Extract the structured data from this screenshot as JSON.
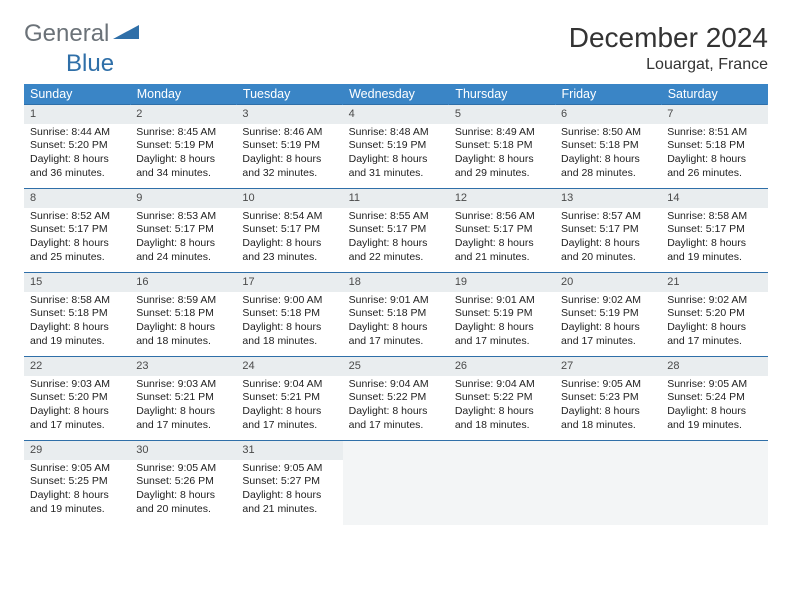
{
  "logo": {
    "text_general": "General",
    "text_blue": "Blue"
  },
  "header": {
    "title": "December 2024",
    "location": "Louargat, France"
  },
  "colors": {
    "header_bg": "#3a85c6",
    "header_text": "#ffffff",
    "row_border": "#2f6fa8",
    "daynum_bg": "#e9edef",
    "logo_gray": "#6b7278",
    "logo_blue": "#2f6fa8"
  },
  "typography": {
    "title_fontsize": 28,
    "location_fontsize": 16,
    "dayheader_fontsize": 12.5,
    "cell_fontsize": 10.5
  },
  "calendar": {
    "day_headers": [
      "Sunday",
      "Monday",
      "Tuesday",
      "Wednesday",
      "Thursday",
      "Friday",
      "Saturday"
    ],
    "weeks": [
      [
        {
          "num": "1",
          "sunrise": "Sunrise: 8:44 AM",
          "sunset": "Sunset: 5:20 PM",
          "day1": "Daylight: 8 hours",
          "day2": "and 36 minutes."
        },
        {
          "num": "2",
          "sunrise": "Sunrise: 8:45 AM",
          "sunset": "Sunset: 5:19 PM",
          "day1": "Daylight: 8 hours",
          "day2": "and 34 minutes."
        },
        {
          "num": "3",
          "sunrise": "Sunrise: 8:46 AM",
          "sunset": "Sunset: 5:19 PM",
          "day1": "Daylight: 8 hours",
          "day2": "and 32 minutes."
        },
        {
          "num": "4",
          "sunrise": "Sunrise: 8:48 AM",
          "sunset": "Sunset: 5:19 PM",
          "day1": "Daylight: 8 hours",
          "day2": "and 31 minutes."
        },
        {
          "num": "5",
          "sunrise": "Sunrise: 8:49 AM",
          "sunset": "Sunset: 5:18 PM",
          "day1": "Daylight: 8 hours",
          "day2": "and 29 minutes."
        },
        {
          "num": "6",
          "sunrise": "Sunrise: 8:50 AM",
          "sunset": "Sunset: 5:18 PM",
          "day1": "Daylight: 8 hours",
          "day2": "and 28 minutes."
        },
        {
          "num": "7",
          "sunrise": "Sunrise: 8:51 AM",
          "sunset": "Sunset: 5:18 PM",
          "day1": "Daylight: 8 hours",
          "day2": "and 26 minutes."
        }
      ],
      [
        {
          "num": "8",
          "sunrise": "Sunrise: 8:52 AM",
          "sunset": "Sunset: 5:17 PM",
          "day1": "Daylight: 8 hours",
          "day2": "and 25 minutes."
        },
        {
          "num": "9",
          "sunrise": "Sunrise: 8:53 AM",
          "sunset": "Sunset: 5:17 PM",
          "day1": "Daylight: 8 hours",
          "day2": "and 24 minutes."
        },
        {
          "num": "10",
          "sunrise": "Sunrise: 8:54 AM",
          "sunset": "Sunset: 5:17 PM",
          "day1": "Daylight: 8 hours",
          "day2": "and 23 minutes."
        },
        {
          "num": "11",
          "sunrise": "Sunrise: 8:55 AM",
          "sunset": "Sunset: 5:17 PM",
          "day1": "Daylight: 8 hours",
          "day2": "and 22 minutes."
        },
        {
          "num": "12",
          "sunrise": "Sunrise: 8:56 AM",
          "sunset": "Sunset: 5:17 PM",
          "day1": "Daylight: 8 hours",
          "day2": "and 21 minutes."
        },
        {
          "num": "13",
          "sunrise": "Sunrise: 8:57 AM",
          "sunset": "Sunset: 5:17 PM",
          "day1": "Daylight: 8 hours",
          "day2": "and 20 minutes."
        },
        {
          "num": "14",
          "sunrise": "Sunrise: 8:58 AM",
          "sunset": "Sunset: 5:17 PM",
          "day1": "Daylight: 8 hours",
          "day2": "and 19 minutes."
        }
      ],
      [
        {
          "num": "15",
          "sunrise": "Sunrise: 8:58 AM",
          "sunset": "Sunset: 5:18 PM",
          "day1": "Daylight: 8 hours",
          "day2": "and 19 minutes."
        },
        {
          "num": "16",
          "sunrise": "Sunrise: 8:59 AM",
          "sunset": "Sunset: 5:18 PM",
          "day1": "Daylight: 8 hours",
          "day2": "and 18 minutes."
        },
        {
          "num": "17",
          "sunrise": "Sunrise: 9:00 AM",
          "sunset": "Sunset: 5:18 PM",
          "day1": "Daylight: 8 hours",
          "day2": "and 18 minutes."
        },
        {
          "num": "18",
          "sunrise": "Sunrise: 9:01 AM",
          "sunset": "Sunset: 5:18 PM",
          "day1": "Daylight: 8 hours",
          "day2": "and 17 minutes."
        },
        {
          "num": "19",
          "sunrise": "Sunrise: 9:01 AM",
          "sunset": "Sunset: 5:19 PM",
          "day1": "Daylight: 8 hours",
          "day2": "and 17 minutes."
        },
        {
          "num": "20",
          "sunrise": "Sunrise: 9:02 AM",
          "sunset": "Sunset: 5:19 PM",
          "day1": "Daylight: 8 hours",
          "day2": "and 17 minutes."
        },
        {
          "num": "21",
          "sunrise": "Sunrise: 9:02 AM",
          "sunset": "Sunset: 5:20 PM",
          "day1": "Daylight: 8 hours",
          "day2": "and 17 minutes."
        }
      ],
      [
        {
          "num": "22",
          "sunrise": "Sunrise: 9:03 AM",
          "sunset": "Sunset: 5:20 PM",
          "day1": "Daylight: 8 hours",
          "day2": "and 17 minutes."
        },
        {
          "num": "23",
          "sunrise": "Sunrise: 9:03 AM",
          "sunset": "Sunset: 5:21 PM",
          "day1": "Daylight: 8 hours",
          "day2": "and 17 minutes."
        },
        {
          "num": "24",
          "sunrise": "Sunrise: 9:04 AM",
          "sunset": "Sunset: 5:21 PM",
          "day1": "Daylight: 8 hours",
          "day2": "and 17 minutes."
        },
        {
          "num": "25",
          "sunrise": "Sunrise: 9:04 AM",
          "sunset": "Sunset: 5:22 PM",
          "day1": "Daylight: 8 hours",
          "day2": "and 17 minutes."
        },
        {
          "num": "26",
          "sunrise": "Sunrise: 9:04 AM",
          "sunset": "Sunset: 5:22 PM",
          "day1": "Daylight: 8 hours",
          "day2": "and 18 minutes."
        },
        {
          "num": "27",
          "sunrise": "Sunrise: 9:05 AM",
          "sunset": "Sunset: 5:23 PM",
          "day1": "Daylight: 8 hours",
          "day2": "and 18 minutes."
        },
        {
          "num": "28",
          "sunrise": "Sunrise: 9:05 AM",
          "sunset": "Sunset: 5:24 PM",
          "day1": "Daylight: 8 hours",
          "day2": "and 19 minutes."
        }
      ],
      [
        {
          "num": "29",
          "sunrise": "Sunrise: 9:05 AM",
          "sunset": "Sunset: 5:25 PM",
          "day1": "Daylight: 8 hours",
          "day2": "and 19 minutes."
        },
        {
          "num": "30",
          "sunrise": "Sunrise: 9:05 AM",
          "sunset": "Sunset: 5:26 PM",
          "day1": "Daylight: 8 hours",
          "day2": "and 20 minutes."
        },
        {
          "num": "31",
          "sunrise": "Sunrise: 9:05 AM",
          "sunset": "Sunset: 5:27 PM",
          "day1": "Daylight: 8 hours",
          "day2": "and 21 minutes."
        },
        {
          "num": "",
          "empty": true
        },
        {
          "num": "",
          "empty": true
        },
        {
          "num": "",
          "empty": true
        },
        {
          "num": "",
          "empty": true
        }
      ]
    ]
  }
}
